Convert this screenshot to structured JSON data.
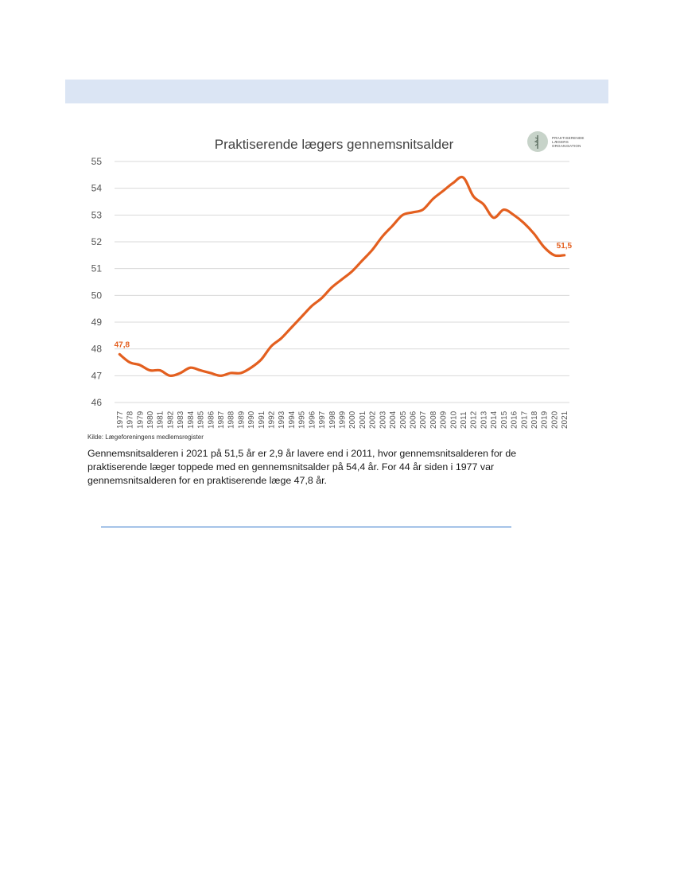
{
  "chart_data": {
    "type": "line",
    "title": "Praktiserende lægers gennemsnitsalder",
    "xlabel": "",
    "ylabel": "",
    "ylim": [
      46,
      55
    ],
    "yticks": [
      46,
      47,
      48,
      49,
      50,
      51,
      52,
      53,
      54,
      55
    ],
    "grid": true,
    "categories": [
      "1977",
      "1978",
      "1979",
      "1980",
      "1981",
      "1982",
      "1983",
      "1984",
      "1985",
      "1986",
      "1987",
      "1988",
      "1989",
      "1990",
      "1991",
      "1992",
      "1993",
      "1994",
      "1995",
      "1996",
      "1997",
      "1998",
      "1999",
      "2000",
      "2001",
      "2002",
      "2003",
      "2004",
      "2005",
      "2006",
      "2007",
      "2008",
      "2009",
      "2010",
      "2011",
      "2012",
      "2013",
      "2014",
      "2015",
      "2016",
      "2017",
      "2018",
      "2019",
      "2020",
      "2021"
    ],
    "series": [
      {
        "values": [
          47.8,
          47.5,
          47.4,
          47.2,
          47.2,
          47.0,
          47.1,
          47.3,
          47.2,
          47.1,
          47.0,
          47.1,
          47.1,
          47.3,
          47.6,
          48.1,
          48.4,
          48.8,
          49.2,
          49.6,
          49.9,
          50.3,
          50.6,
          50.9,
          51.3,
          51.7,
          52.2,
          52.6,
          53.0,
          53.1,
          53.2,
          53.6,
          53.9,
          54.2,
          54.4,
          53.7,
          53.4,
          52.9,
          53.2,
          53.0,
          52.7,
          52.3,
          51.8,
          51.5,
          51.5
        ],
        "color": "#e35f1f"
      }
    ],
    "annotations": [
      {
        "category": "1977",
        "value": 47.8,
        "text": "47,8"
      },
      {
        "category": "2021",
        "value": 51.5,
        "text": "51,5"
      }
    ]
  },
  "logo": {
    "icon": "caduceus-icon",
    "lines": [
      "PRAKTISERENDE",
      "LÆGERS",
      "ORGANISATION"
    ]
  },
  "source_text": "Kilde: Lægeforeningens medlemsregister",
  "caption": "Gennemsnitsalderen i 2021 på 51,5 år er 2,9 år lavere end i 2011, hvor gennemsnitsalderen for de praktiserende læger toppede med en gennemsnitsalder på 54,4 år. For 44 år siden i 1977 var gennemsnitsalderen for en praktiserende læge 47,8 år."
}
